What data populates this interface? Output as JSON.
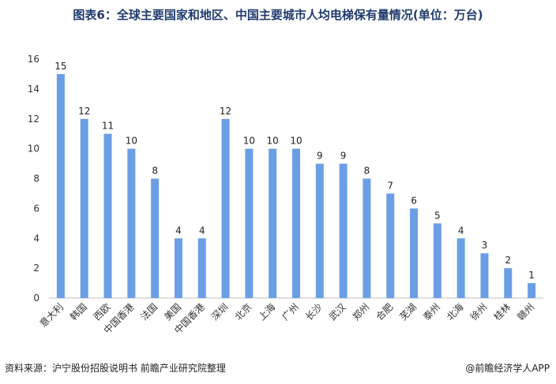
{
  "title": "图表6：全球主要国家和地区、中国主要城市人均电梯保有量情况(单位：万台)",
  "source": "资料来源：沪宁股份招股说明书 前瞻产业研究院整理",
  "brand": "@前瞻经济学人APP",
  "colors": {
    "bar": "#6a9fe6",
    "axis": "#bfbfbf"
  },
  "chart_data": {
    "type": "bar",
    "categories": [
      "意大利",
      "韩国",
      "西欧",
      "中国香港",
      "法国",
      "美国",
      "中国香港",
      "深圳",
      "北京",
      "上海",
      "广州",
      "长沙",
      "武汉",
      "郑州",
      "合肥",
      "芜湖",
      "泰州",
      "北海",
      "徐州",
      "桂林",
      "赣州"
    ],
    "values": [
      15,
      12,
      11,
      10,
      8,
      4,
      4,
      12,
      10,
      10,
      10,
      9,
      9,
      8,
      7,
      6,
      5,
      4,
      3,
      2,
      1
    ],
    "ylim": [
      0,
      16
    ],
    "yticks": [
      0,
      2,
      4,
      6,
      8,
      10,
      12,
      14,
      16
    ],
    "grid": false,
    "data_labels": true
  }
}
